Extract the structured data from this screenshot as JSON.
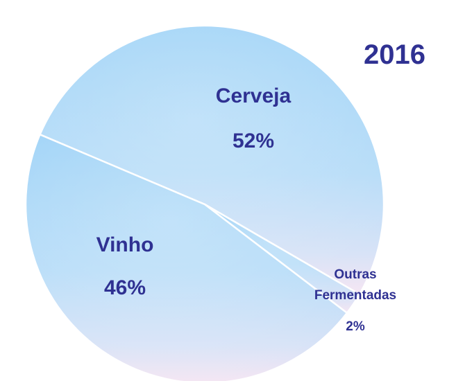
{
  "chart_data": {
    "type": "pie",
    "title": "2016",
    "categories": [
      "Cerveja",
      "Outras Fermentadas",
      "Vinho"
    ],
    "values": [
      52,
      2,
      46
    ],
    "value_labels": [
      "52%",
      "2%",
      "46%"
    ]
  }
}
